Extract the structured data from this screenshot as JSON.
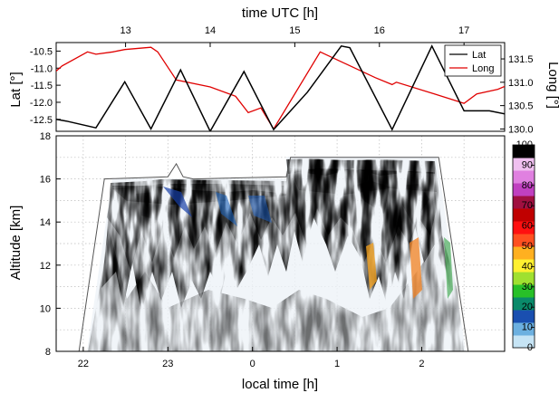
{
  "chart_data": [
    {
      "type": "line",
      "top_axis": {
        "label": "time UTC [h]",
        "ticks": [
          "13",
          "14",
          "15",
          "16",
          "17"
        ]
      },
      "left_axis": {
        "label": "Lat [°]",
        "ticks": [
          "-10.5",
          "-11.0",
          "-11.5",
          "-12.0",
          "-12.5"
        ],
        "ylim": [
          -12.85,
          -10.25
        ]
      },
      "right_axis": {
        "label": "Long [°]",
        "ticks": [
          "131.5",
          "131.0",
          "130.5",
          "130.0"
        ],
        "ylim": [
          129.95,
          131.85
        ]
      },
      "legend": {
        "position": "top-right",
        "entries": [
          "Lat",
          "Long"
        ]
      },
      "x_utc_ticks_values": [
        13,
        14,
        15,
        16,
        17
      ],
      "series": [
        {
          "name": "Lat",
          "color": "#000000",
          "axis": "left",
          "x_utc": [
            11.68,
            11.95,
            12.3,
            12.65,
            12.99,
            13.3,
            13.65,
            14.0,
            14.4,
            14.75,
            15.15,
            15.55,
            15.65,
            16.15,
            16.62,
            17.0,
            17.3,
            17.6
          ],
          "values": [
            -12.45,
            -12.4,
            -12.55,
            -12.75,
            -11.4,
            -12.78,
            -11.05,
            -12.85,
            -11.1,
            -12.8,
            -11.7,
            -10.35,
            -10.4,
            -12.8,
            -10.35,
            -12.25,
            -12.25,
            -12.4
          ]
        },
        {
          "name": "Long",
          "color": "#e00000",
          "axis": "right",
          "x_utc": [
            11.68,
            11.9,
            12.0,
            12.25,
            12.55,
            12.65,
            12.85,
            12.99,
            13.3,
            13.38,
            13.6,
            14.0,
            14.3,
            14.45,
            14.6,
            14.75,
            15.3,
            15.95,
            16.15,
            16.2,
            16.65,
            17.0,
            17.15,
            17.4,
            17.6
          ],
          "values": [
            131.0,
            131.0,
            130.95,
            131.35,
            131.65,
            131.6,
            131.65,
            131.7,
            131.75,
            131.65,
            131.05,
            130.9,
            130.7,
            130.35,
            130.45,
            130.0,
            131.65,
            131.1,
            130.95,
            131.0,
            130.75,
            130.55,
            130.75,
            130.85,
            131.0
          ]
        }
      ]
    },
    {
      "type": "heatmap",
      "ylabel": "Altitude [km]",
      "xlabel": "local time [h]",
      "x_ticks": [
        "22",
        "23",
        "0",
        "1",
        "2"
      ],
      "x_tick_values": [
        22,
        23,
        24,
        25,
        26
      ],
      "y_ticks": [
        "8",
        "10",
        "12",
        "14",
        "16",
        "18"
      ],
      "ylim": [
        8,
        18
      ],
      "xlim": [
        21.68,
        26.98
      ],
      "colorbar": {
        "ticks": [
          "0",
          "10",
          "20",
          "30",
          "40",
          "50",
          "60",
          "70",
          "80",
          "90",
          "100"
        ],
        "range": [
          0,
          100
        ],
        "colors": [
          "#c6e4f5",
          "#6cb0e0",
          "#1a4fb0",
          "#0a8a6a",
          "#28c028",
          "#a0e030",
          "#fff030",
          "#ffb020",
          "#ff5020",
          "#ff1010",
          "#c00000",
          "#a01040",
          "#c040c0",
          "#e080e0",
          "#f0c0f0",
          "#000000"
        ]
      },
      "flight_ceiling_km": {
        "x_local": [
          21.95,
          22.25,
          23.0,
          23.1,
          23.18,
          23.3,
          24.4,
          24.45,
          26.2,
          26.55
        ],
        "values": [
          8.0,
          16.0,
          16.1,
          16.7,
          16.1,
          16.0,
          16.1,
          17.0,
          17.0,
          8.0
        ]
      }
    }
  ]
}
